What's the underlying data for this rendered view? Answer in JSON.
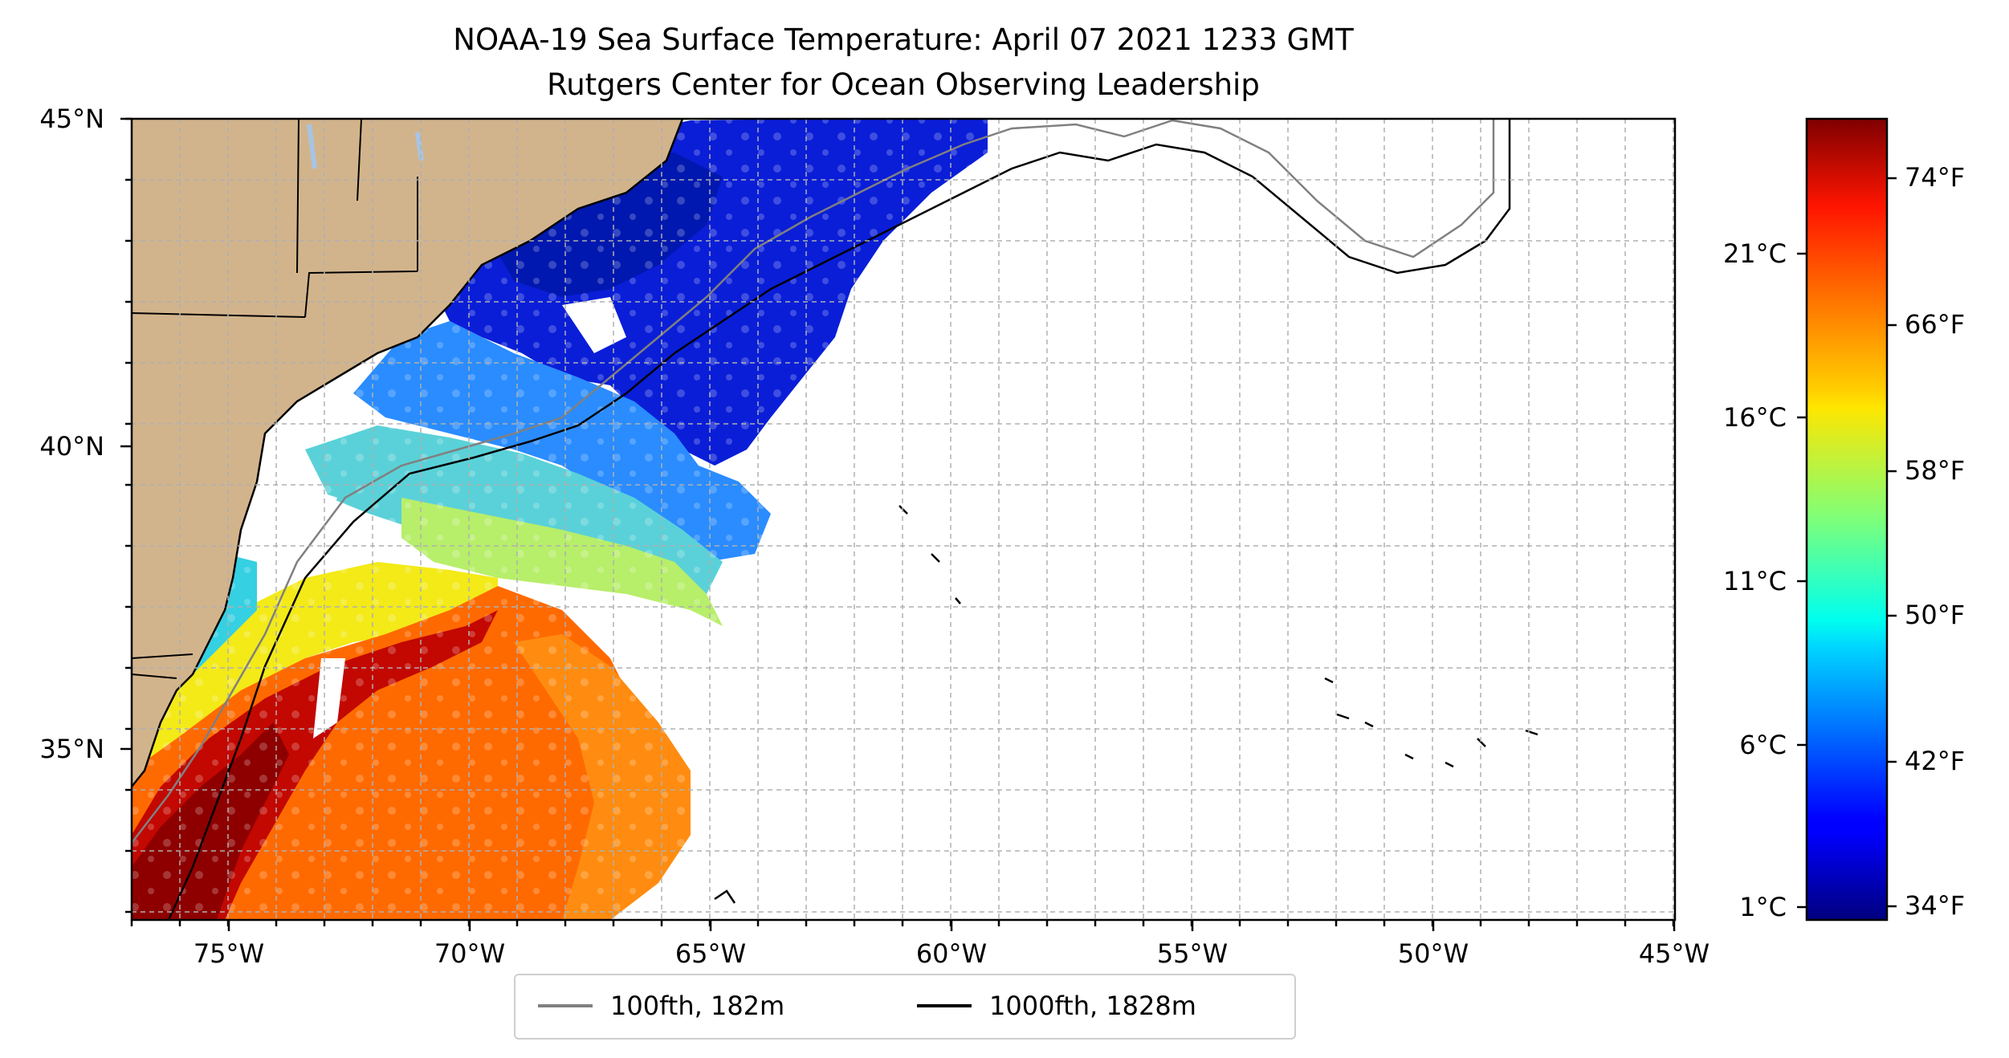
{
  "header": {
    "title": "NOAA-19 Sea Surface Temperature: April 07 2021 1233 GMT",
    "subtitle": "Rutgers Center for Ocean Observing Leadership"
  },
  "map": {
    "lat_ticks": [
      "45°N",
      "40°N",
      "35°N"
    ],
    "lon_ticks": [
      "75°W",
      "70°W",
      "65°W",
      "60°W",
      "55°W",
      "50°W",
      "45°W"
    ],
    "land_color": "#d2b48c",
    "lake_color": "#a7c4e5"
  },
  "colorbar": {
    "celsius_labels": [
      "21°C",
      "16°C",
      "11°C",
      "6°C",
      "1°C"
    ],
    "fahrenheit_labels": [
      "74°F",
      "66°F",
      "58°F",
      "50°F",
      "42°F",
      "34°F"
    ],
    "colormap": "jet"
  },
  "legend": {
    "items": [
      {
        "label": "100fth, 182m",
        "color": "#808080"
      },
      {
        "label": "1000fth, 1828m",
        "color": "#000000"
      }
    ]
  }
}
